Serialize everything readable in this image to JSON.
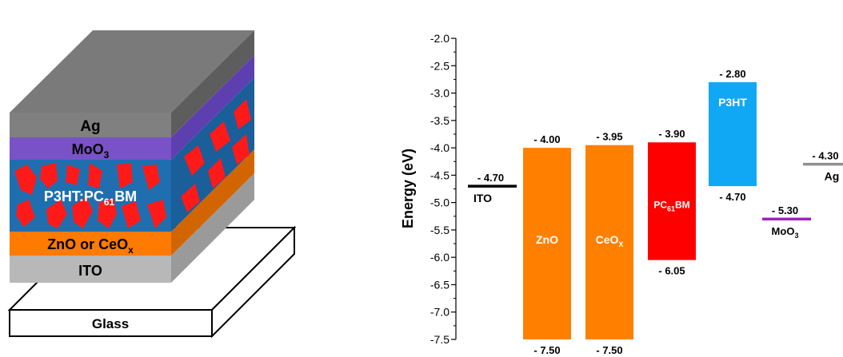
{
  "device": {
    "layers": {
      "ag": "Ag",
      "moo3": "MoO",
      "moo3_sub": "3",
      "active_pre": "P3HT:PC",
      "active_sub": "61",
      "active_post": "BM",
      "etl_pre": "ZnO or CeO",
      "etl_sub": "x",
      "ito": "ITO",
      "glass": "Glass"
    },
    "colors": {
      "ag": "#808080",
      "moo3": "#7a52c7",
      "active": "#1f6fb0",
      "domains": "#ff1a1a",
      "etl": "#ff7f00",
      "ito": "#b5b5b5",
      "glass": "#ffffff"
    }
  },
  "chart_data": {
    "type": "energy-level",
    "ylabel": "Energy (eV)",
    "ylim": [
      -7.5,
      -2.0
    ],
    "yticks": [
      "-2.0",
      "-2.5",
      "-3.0",
      "-3.5",
      "-4.0",
      "-4.5",
      "-5.0",
      "-5.5",
      "-6.0",
      "-6.5",
      "-7.0",
      "-7.5"
    ],
    "levels": [
      {
        "name": "ITO",
        "value": -4.7,
        "value_label": "- 4.70",
        "color": "#000000"
      },
      {
        "name": "MoO3",
        "name_main": "MoO",
        "name_sub": "3",
        "value": -5.3,
        "value_label": "- 5.30",
        "color": "#a020c0"
      },
      {
        "name": "Ag",
        "value": -4.3,
        "value_label": "- 4.30",
        "color": "#909090"
      }
    ],
    "bands": [
      {
        "name": "ZnO",
        "name_main": "ZnO",
        "name_sub": "",
        "top": -4.0,
        "bottom": -7.5,
        "top_label": "- 4.00",
        "bottom_label": "- 7.50",
        "color": "#ff8000"
      },
      {
        "name": "CeOx",
        "name_main": "CeO",
        "name_sub": "X",
        "top": -3.95,
        "bottom": -7.5,
        "top_label": "- 3.95",
        "bottom_label": "- 7.50",
        "color": "#ff8000"
      },
      {
        "name": "PC61BM",
        "name_main": "PC",
        "name_sub": "61",
        "name_post": "BM",
        "top": -3.9,
        "bottom": -6.05,
        "top_label": "- 3.90",
        "bottom_label": "- 6.05",
        "color": "#ff0000"
      },
      {
        "name": "P3HT",
        "name_main": "P3HT",
        "name_sub": "",
        "top": -2.8,
        "bottom": -4.7,
        "top_label": "- 2.80",
        "bottom_label": "- 4.70",
        "color": "#10a8f5"
      }
    ]
  }
}
